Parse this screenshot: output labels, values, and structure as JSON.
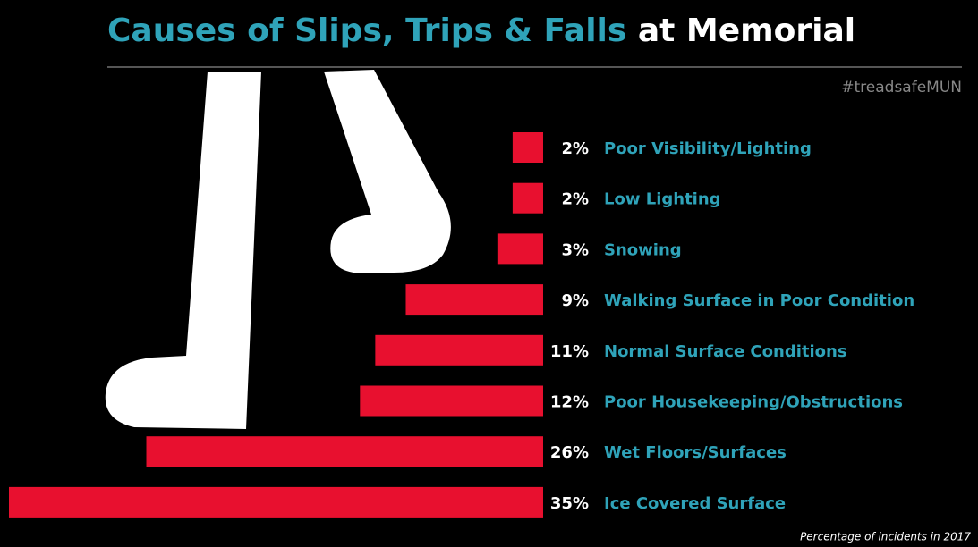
{
  "chart_data": {
    "type": "bar",
    "orientation": "horizontal",
    "title": [
      "Causes of Slips, Trips & Falls",
      "at Memorial"
    ],
    "hashtag": "#treadsafeMUN",
    "footnote": "Percentage of incidents in 2017",
    "categories": [
      "Poor Visibility/Lighting",
      "Low Lighting",
      "Snowing",
      "Walking Surface in Poor Condition",
      "Normal Surface Conditions",
      "Poor Housekeeping/Obstructions",
      "Wet Floors/Surfaces",
      "Ice Covered Surface"
    ],
    "values": [
      2,
      2,
      3,
      9,
      11,
      12,
      26,
      35
    ],
    "value_labels": [
      "2%",
      "2%",
      "3%",
      "9%",
      "11%",
      "12%",
      "26%",
      "35%"
    ],
    "color": "#e8102f"
  }
}
